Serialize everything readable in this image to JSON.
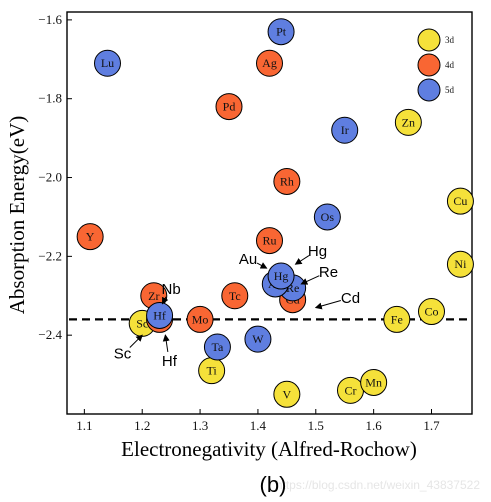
{
  "chart_data": {
    "type": "scatter",
    "xlabel": "Electronegativity (Alfred-Rochow)",
    "ylabel": "Absorption Energy(eV)",
    "xlim": [
      1.07,
      1.77
    ],
    "ylim": [
      -2.6,
      -1.58
    ],
    "x_ticks": [
      1.1,
      1.2,
      1.3,
      1.4,
      1.5,
      1.6,
      1.7
    ],
    "y_ticks": [
      -1.6,
      -1.8,
      -2.0,
      -2.2,
      -2.4
    ],
    "y_tick_labels": [
      "−1.6",
      "−1.8",
      "−2.0",
      "−2.2",
      "−2.4"
    ],
    "reference_line": {
      "y": -2.36,
      "style": "dashed"
    },
    "legend": {
      "placement": "top-right"
    },
    "panel_label": "(b)",
    "colors": {
      "3d": "#f5e13a",
      "4d": "#f96633",
      "5d": "#5f7ee0"
    },
    "series": [
      {
        "name": "3d",
        "points": [
          {
            "label": "Sc",
            "x": 1.2,
            "y": -2.37
          },
          {
            "label": "Ti",
            "x": 1.32,
            "y": -2.49
          },
          {
            "label": "V",
            "x": 1.45,
            "y": -2.55
          },
          {
            "label": "Cr",
            "x": 1.56,
            "y": -2.54
          },
          {
            "label": "Mn",
            "x": 1.6,
            "y": -2.52
          },
          {
            "label": "Fe",
            "x": 1.64,
            "y": -2.36
          },
          {
            "label": "Co",
            "x": 1.7,
            "y": -2.34
          },
          {
            "label": "Ni",
            "x": 1.75,
            "y": -2.22
          },
          {
            "label": "Cu",
            "x": 1.75,
            "y": -2.06
          },
          {
            "label": "Zn",
            "x": 1.66,
            "y": -1.86
          }
        ]
      },
      {
        "name": "4d",
        "points": [
          {
            "label": "Y",
            "x": 1.11,
            "y": -2.15
          },
          {
            "label": "Zr",
            "x": 1.22,
            "y": -2.3
          },
          {
            "label": "Nb",
            "x": 1.23,
            "y": -2.36
          },
          {
            "label": "Mo",
            "x": 1.3,
            "y": -2.36
          },
          {
            "label": "Tc",
            "x": 1.36,
            "y": -2.3
          },
          {
            "label": "Ru",
            "x": 1.42,
            "y": -2.16
          },
          {
            "label": "Rh",
            "x": 1.45,
            "y": -2.01
          },
          {
            "label": "Pd",
            "x": 1.35,
            "y": -1.82
          },
          {
            "label": "Ag",
            "x": 1.42,
            "y": -1.71
          },
          {
            "label": "Cd",
            "x": 1.46,
            "y": -2.31
          }
        ]
      },
      {
        "name": "5d",
        "points": [
          {
            "label": "Lu",
            "x": 1.14,
            "y": -1.71
          },
          {
            "label": "Hf",
            "x": 1.23,
            "y": -2.35
          },
          {
            "label": "Ta",
            "x": 1.33,
            "y": -2.43
          },
          {
            "label": "W",
            "x": 1.4,
            "y": -2.41
          },
          {
            "label": "Re",
            "x": 1.46,
            "y": -2.28
          },
          {
            "label": "Os",
            "x": 1.52,
            "y": -2.1
          },
          {
            "label": "Ir",
            "x": 1.55,
            "y": -1.88
          },
          {
            "label": "Pt",
            "x": 1.44,
            "y": -1.63
          },
          {
            "label": "Au",
            "x": 1.43,
            "y": -2.27
          },
          {
            "label": "Hg",
            "x": 1.44,
            "y": -2.25
          }
        ]
      }
    ],
    "annotations": [
      {
        "text": "Nb",
        "x": 1.25,
        "y": -2.283,
        "target": [
          1.235,
          -2.32
        ]
      },
      {
        "text": "Sc",
        "x": 1.166,
        "y": -2.447,
        "target": [
          1.2,
          -2.4
        ]
      },
      {
        "text": "Hf",
        "x": 1.247,
        "y": -2.465,
        "target": [
          1.24,
          -2.4
        ]
      },
      {
        "text": "Au",
        "x": 1.383,
        "y": -2.207,
        "target": [
          1.415,
          -2.23
        ]
      },
      {
        "text": "Hg",
        "x": 1.503,
        "y": -2.186,
        "target": [
          1.465,
          -2.22
        ]
      },
      {
        "text": "Re",
        "x": 1.522,
        "y": -2.24,
        "target": [
          1.475,
          -2.27
        ]
      },
      {
        "text": "Cd",
        "x": 1.56,
        "y": -2.306,
        "target": [
          1.5,
          -2.33
        ]
      }
    ]
  },
  "watermark": "https://blog.csdn.net/weixin_43837522"
}
